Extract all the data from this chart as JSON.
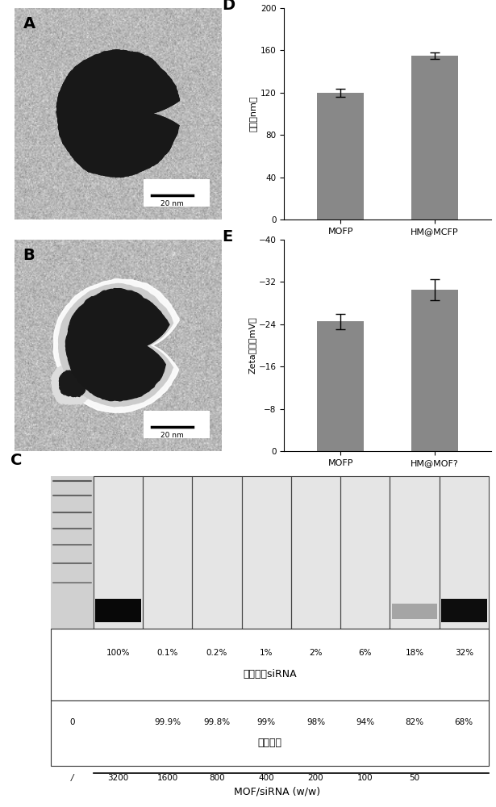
{
  "panel_D": {
    "categories": [
      "MOFP",
      "HM@MCFP"
    ],
    "values": [
      120,
      155
    ],
    "errors": [
      4,
      3
    ],
    "ylabel": "尺寸（nm）",
    "ylim": [
      0,
      200
    ],
    "yticks": [
      0,
      40,
      80,
      120,
      160,
      200
    ],
    "bar_color": "#888888",
    "label": "D"
  },
  "panel_E": {
    "categories": [
      "MOFP",
      "HM@MOF?"
    ],
    "values": [
      -24.5,
      -30.5
    ],
    "errors": [
      1.5,
      2.0
    ],
    "ylabel": "Zeta电位（mV）",
    "ylim": [
      -40,
      0
    ],
    "yticks": [
      -40,
      -32,
      -24,
      -16,
      -8,
      0
    ],
    "bar_color": "#888888",
    "label": "E"
  },
  "panel_C": {
    "label": "C",
    "supernatant_percentages": [
      "100%",
      "0.1%",
      "0.2%",
      "1%",
      "2%",
      "6%",
      "18%",
      "32%"
    ],
    "loading_efficiencies": [
      "0",
      "99.9%",
      "99.8%",
      "99%",
      "98%",
      "94%",
      "82%",
      "68%"
    ],
    "mof_sirna_ratios": [
      "/",
      "3200",
      "1600",
      "800",
      "400",
      "200",
      "100",
      "50"
    ],
    "xlabel": "MOF/siRNA (w/w)",
    "row1_label": "上清中的siRNA",
    "row2_label": "负载效率"
  },
  "bg_color": "#ffffff",
  "panel_A_label": "A",
  "panel_B_label": "B"
}
